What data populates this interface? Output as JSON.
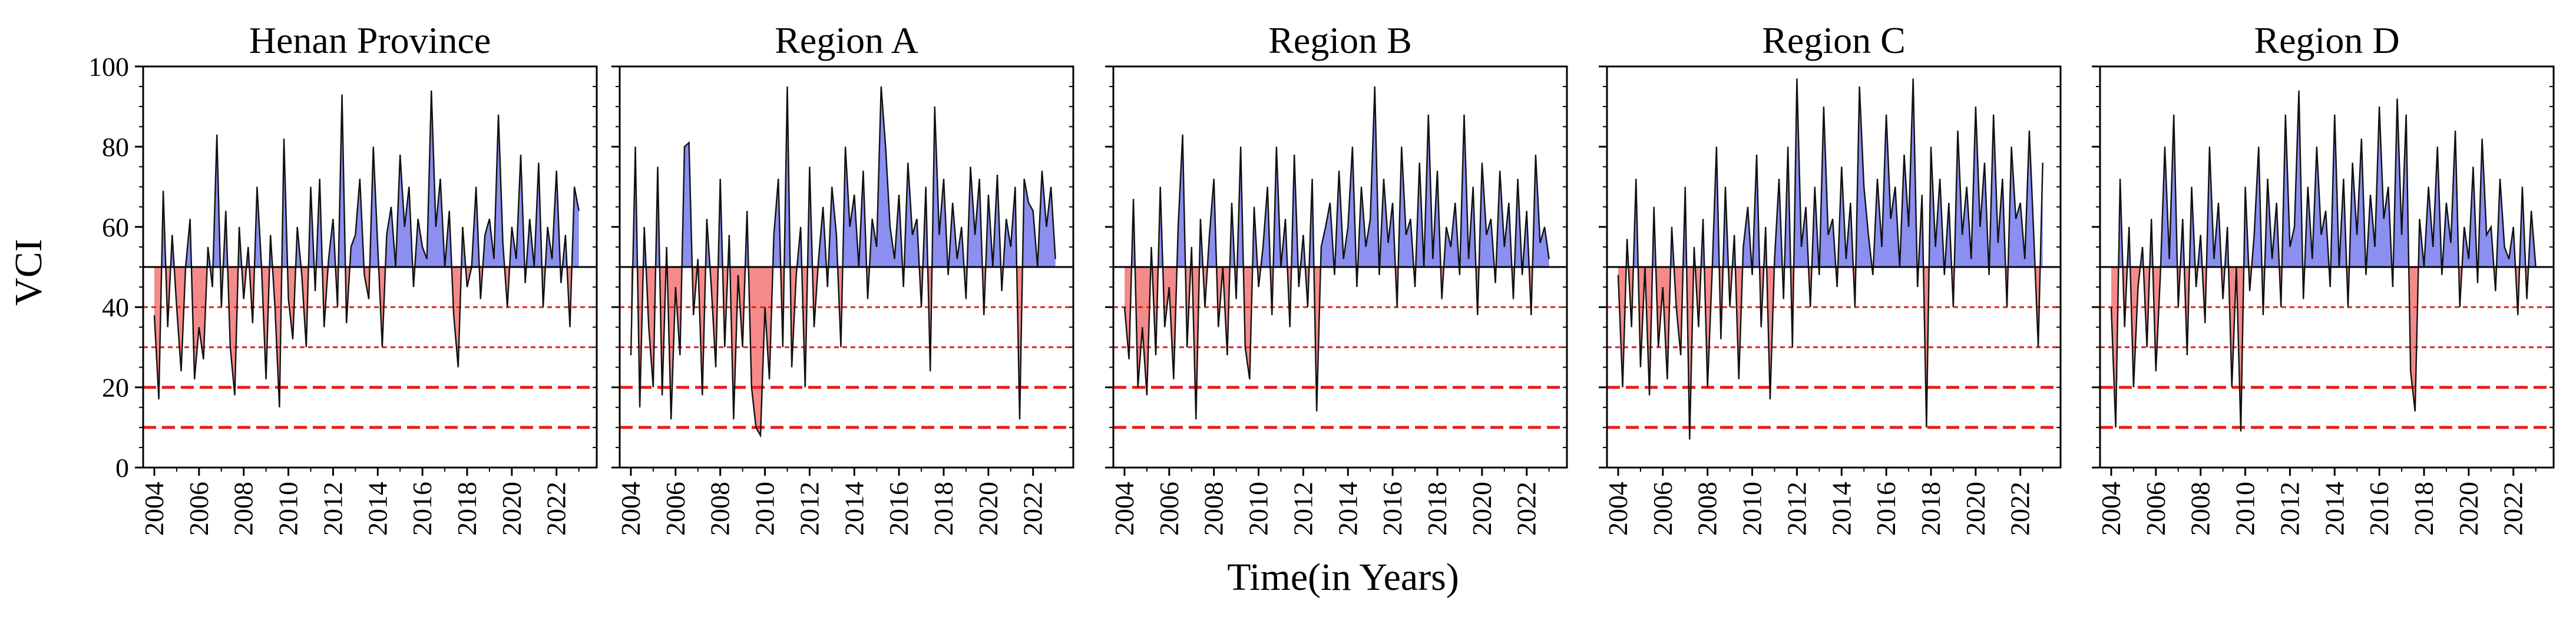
{
  "figure": {
    "ylabel": "VCI",
    "xlabel": "Time(in Years)"
  },
  "chart_data": [
    {
      "type": "area",
      "title": "Henan Province",
      "ylim": [
        0,
        100
      ],
      "yticks": [
        0,
        20,
        40,
        60,
        80,
        100
      ],
      "xlim": [
        2003.5,
        2023.8
      ],
      "xticks": [
        "2004",
        "2006",
        "2008",
        "2010",
        "2012",
        "2014",
        "2016",
        "2018",
        "2020",
        "2022"
      ],
      "baseline": 50,
      "reference_lines": [
        40,
        30,
        20,
        10
      ],
      "x": [
        2004.0,
        2004.2,
        2004.4,
        2004.6,
        2004.8,
        2005.0,
        2005.2,
        2005.4,
        2005.6,
        2005.8,
        2006.0,
        2006.2,
        2006.4,
        2006.6,
        2006.8,
        2007.0,
        2007.2,
        2007.4,
        2007.6,
        2007.8,
        2008.0,
        2008.2,
        2008.4,
        2008.6,
        2008.8,
        2009.0,
        2009.2,
        2009.4,
        2009.6,
        2009.8,
        2010.0,
        2010.2,
        2010.4,
        2010.6,
        2010.8,
        2011.0,
        2011.2,
        2011.4,
        2011.6,
        2011.8,
        2012.0,
        2012.2,
        2012.4,
        2012.6,
        2012.8,
        2013.0,
        2013.2,
        2013.4,
        2013.6,
        2013.8,
        2014.0,
        2014.2,
        2014.4,
        2014.6,
        2014.8,
        2015.0,
        2015.2,
        2015.4,
        2015.6,
        2015.8,
        2016.0,
        2016.2,
        2016.4,
        2016.6,
        2016.8,
        2017.0,
        2017.2,
        2017.4,
        2017.6,
        2017.8,
        2018.0,
        2018.2,
        2018.4,
        2018.6,
        2018.8,
        2019.0,
        2019.2,
        2019.4,
        2019.6,
        2019.8,
        2020.0,
        2020.2,
        2020.4,
        2020.6,
        2020.8,
        2021.0,
        2021.2,
        2021.4,
        2021.6,
        2021.8,
        2022.0,
        2022.2,
        2022.4,
        2022.6,
        2022.8,
        2023.0
      ],
      "values": [
        38,
        17,
        69,
        35,
        58,
        40,
        24,
        50,
        62,
        22,
        35,
        27,
        55,
        45,
        83,
        40,
        64,
        30,
        18,
        60,
        42,
        55,
        36,
        70,
        50,
        22,
        58,
        40,
        15,
        82,
        42,
        32,
        60,
        48,
        30,
        70,
        44,
        72,
        35,
        52,
        62,
        40,
        93,
        36,
        55,
        58,
        72,
        48,
        42,
        80,
        55,
        30,
        58,
        65,
        50,
        78,
        60,
        70,
        45,
        62,
        55,
        52,
        94,
        60,
        72,
        50,
        64,
        38,
        25,
        60,
        45,
        50,
        70,
        42,
        58,
        62,
        52,
        88,
        56,
        40,
        60,
        52,
        78,
        46,
        62,
        50,
        76,
        40,
        60,
        52,
        74,
        46,
        58,
        35,
        70,
        64
      ],
      "series_color": {
        "above": "#8a8ff0",
        "below": "#f58a8a"
      }
    },
    {
      "type": "area",
      "title": "Region A",
      "ylim": [
        0,
        100
      ],
      "yticks": [
        0,
        20,
        40,
        60,
        80,
        100
      ],
      "xlim": [
        2003.5,
        2023.8
      ],
      "xticks": [
        "2004",
        "2006",
        "2008",
        "2010",
        "2012",
        "2014",
        "2016",
        "2018",
        "2020",
        "2022"
      ],
      "baseline": 50,
      "reference_lines": [
        40,
        30,
        20,
        10
      ],
      "x": [
        2004.0,
        2004.2,
        2004.4,
        2004.6,
        2004.8,
        2005.0,
        2005.2,
        2005.4,
        2005.6,
        2005.8,
        2006.0,
        2006.2,
        2006.4,
        2006.6,
        2006.8,
        2007.0,
        2007.2,
        2007.4,
        2007.6,
        2007.8,
        2008.0,
        2008.2,
        2008.4,
        2008.6,
        2008.8,
        2009.0,
        2009.2,
        2009.4,
        2009.6,
        2009.8,
        2010.0,
        2010.2,
        2010.4,
        2010.6,
        2010.8,
        2011.0,
        2011.2,
        2011.4,
        2011.6,
        2011.8,
        2012.0,
        2012.2,
        2012.4,
        2012.6,
        2012.8,
        2013.0,
        2013.2,
        2013.4,
        2013.6,
        2013.8,
        2014.0,
        2014.2,
        2014.4,
        2014.6,
        2014.8,
        2015.0,
        2015.2,
        2015.4,
        2015.6,
        2015.8,
        2016.0,
        2016.2,
        2016.4,
        2016.6,
        2016.8,
        2017.0,
        2017.2,
        2017.4,
        2017.6,
        2017.8,
        2018.0,
        2018.2,
        2018.4,
        2018.6,
        2018.8,
        2019.0,
        2019.2,
        2019.4,
        2019.6,
        2019.8,
        2020.0,
        2020.2,
        2020.4,
        2020.6,
        2020.8,
        2021.0,
        2021.2,
        2021.4,
        2021.6,
        2021.8,
        2022.0,
        2022.2,
        2022.4,
        2022.6,
        2022.8,
        2023.0
      ],
      "values": [
        28,
        80,
        15,
        60,
        35,
        20,
        75,
        18,
        55,
        12,
        45,
        28,
        80,
        81,
        38,
        52,
        18,
        62,
        45,
        25,
        72,
        30,
        58,
        12,
        48,
        30,
        64,
        20,
        10,
        8,
        40,
        22,
        58,
        72,
        30,
        95,
        25,
        48,
        60,
        20,
        75,
        35,
        52,
        65,
        45,
        70,
        58,
        30,
        80,
        60,
        68,
        50,
        74,
        42,
        62,
        55,
        95,
        80,
        60,
        52,
        68,
        45,
        76,
        58,
        62,
        40,
        70,
        24,
        90,
        58,
        72,
        48,
        66,
        52,
        60,
        42,
        75,
        58,
        72,
        38,
        68,
        50,
        73,
        44,
        62,
        55,
        70,
        12,
        72,
        66,
        64,
        50,
        74,
        60,
        70,
        52
      ],
      "series_color": {
        "above": "#8a8ff0",
        "below": "#f58a8a"
      }
    },
    {
      "type": "area",
      "title": "Region B",
      "ylim": [
        0,
        100
      ],
      "yticks": [
        0,
        20,
        40,
        60,
        80,
        100
      ],
      "xlim": [
        2003.5,
        2023.8
      ],
      "xticks": [
        "2004",
        "2006",
        "2008",
        "2010",
        "2012",
        "2014",
        "2016",
        "2018",
        "2020",
        "2022"
      ],
      "baseline": 50,
      "reference_lines": [
        40,
        30,
        20,
        10
      ],
      "x": [
        2004.0,
        2004.2,
        2004.4,
        2004.6,
        2004.8,
        2005.0,
        2005.2,
        2005.4,
        2005.6,
        2005.8,
        2006.0,
        2006.2,
        2006.4,
        2006.6,
        2006.8,
        2007.0,
        2007.2,
        2007.4,
        2007.6,
        2007.8,
        2008.0,
        2008.2,
        2008.4,
        2008.6,
        2008.8,
        2009.0,
        2009.2,
        2009.4,
        2009.6,
        2009.8,
        2010.0,
        2010.2,
        2010.4,
        2010.6,
        2010.8,
        2011.0,
        2011.2,
        2011.4,
        2011.6,
        2011.8,
        2012.0,
        2012.2,
        2012.4,
        2012.6,
        2012.8,
        2013.0,
        2013.2,
        2013.4,
        2013.6,
        2013.8,
        2014.0,
        2014.2,
        2014.4,
        2014.6,
        2014.8,
        2015.0,
        2015.2,
        2015.4,
        2015.6,
        2015.8,
        2016.0,
        2016.2,
        2016.4,
        2016.6,
        2016.8,
        2017.0,
        2017.2,
        2017.4,
        2017.6,
        2017.8,
        2018.0,
        2018.2,
        2018.4,
        2018.6,
        2018.8,
        2019.0,
        2019.2,
        2019.4,
        2019.6,
        2019.8,
        2020.0,
        2020.2,
        2020.4,
        2020.6,
        2020.8,
        2021.0,
        2021.2,
        2021.4,
        2021.6,
        2021.8,
        2022.0,
        2022.2,
        2022.4,
        2022.6,
        2022.8,
        2023.0
      ],
      "values": [
        40,
        27,
        67,
        20,
        35,
        18,
        55,
        28,
        70,
        35,
        45,
        22,
        60,
        83,
        30,
        55,
        12,
        62,
        40,
        58,
        72,
        35,
        50,
        28,
        66,
        42,
        80,
        30,
        22,
        65,
        45,
        55,
        70,
        38,
        80,
        50,
        62,
        35,
        78,
        45,
        58,
        40,
        72,
        14,
        55,
        60,
        66,
        48,
        74,
        52,
        60,
        80,
        45,
        70,
        55,
        62,
        95,
        48,
        72,
        56,
        66,
        40,
        80,
        58,
        62,
        45,
        76,
        50,
        88,
        52,
        74,
        42,
        60,
        55,
        66,
        48,
        88,
        52,
        70,
        38,
        76,
        58,
        62,
        46,
        74,
        55,
        66,
        42,
        72,
        48,
        64,
        38,
        78,
        56,
        60,
        52
      ],
      "series_color": {
        "above": "#8a8ff0",
        "below": "#f58a8a"
      }
    },
    {
      "type": "area",
      "title": "Region C",
      "ylim": [
        0,
        100
      ],
      "yticks": [
        0,
        20,
        40,
        60,
        80,
        100
      ],
      "xlim": [
        2003.5,
        2023.8
      ],
      "xticks": [
        "2004",
        "2006",
        "2008",
        "2010",
        "2012",
        "2014",
        "2016",
        "2018",
        "2020",
        "2022"
      ],
      "baseline": 50,
      "reference_lines": [
        40,
        30,
        20,
        10
      ],
      "x": [
        2004.0,
        2004.2,
        2004.4,
        2004.6,
        2004.8,
        2005.0,
        2005.2,
        2005.4,
        2005.6,
        2005.8,
        2006.0,
        2006.2,
        2006.4,
        2006.6,
        2006.8,
        2007.0,
        2007.2,
        2007.4,
        2007.6,
        2007.8,
        2008.0,
        2008.2,
        2008.4,
        2008.6,
        2008.8,
        2009.0,
        2009.2,
        2009.4,
        2009.6,
        2009.8,
        2010.0,
        2010.2,
        2010.4,
        2010.6,
        2010.8,
        2011.0,
        2011.2,
        2011.4,
        2011.6,
        2011.8,
        2012.0,
        2012.2,
        2012.4,
        2012.6,
        2012.8,
        2013.0,
        2013.2,
        2013.4,
        2013.6,
        2013.8,
        2014.0,
        2014.2,
        2014.4,
        2014.6,
        2014.8,
        2015.0,
        2015.2,
        2015.4,
        2015.6,
        2015.8,
        2016.0,
        2016.2,
        2016.4,
        2016.6,
        2016.8,
        2017.0,
        2017.2,
        2017.4,
        2017.6,
        2017.8,
        2018.0,
        2018.2,
        2018.4,
        2018.6,
        2018.8,
        2019.0,
        2019.2,
        2019.4,
        2019.6,
        2019.8,
        2020.0,
        2020.2,
        2020.4,
        2020.6,
        2020.8,
        2021.0,
        2021.2,
        2021.4,
        2021.6,
        2021.8,
        2022.0,
        2022.2,
        2022.4,
        2022.6,
        2022.8,
        2023.0
      ],
      "values": [
        48,
        20,
        57,
        35,
        72,
        25,
        50,
        18,
        65,
        30,
        45,
        22,
        60,
        40,
        28,
        70,
        7,
        55,
        35,
        62,
        20,
        48,
        80,
        32,
        70,
        40,
        58,
        22,
        55,
        65,
        48,
        78,
        35,
        60,
        17,
        52,
        72,
        42,
        80,
        30,
        97,
        55,
        65,
        40,
        70,
        48,
        90,
        58,
        62,
        45,
        75,
        52,
        66,
        40,
        95,
        70,
        58,
        48,
        72,
        55,
        88,
        62,
        70,
        50,
        78,
        60,
        97,
        45,
        68,
        10,
        80,
        55,
        72,
        48,
        66,
        40,
        84,
        58,
        70,
        52,
        90,
        60,
        76,
        48,
        88,
        56,
        72,
        40,
        80,
        62,
        66,
        52,
        84,
        58,
        30,
        76
      ],
      "series_color": {
        "above": "#8a8ff0",
        "below": "#f58a8a"
      }
    },
    {
      "type": "area",
      "title": "Region D",
      "ylim": [
        0,
        100
      ],
      "yticks": [
        0,
        20,
        40,
        60,
        80,
        100
      ],
      "xlim": [
        2003.5,
        2023.8
      ],
      "xticks": [
        "2004",
        "2006",
        "2008",
        "2010",
        "2012",
        "2014",
        "2016",
        "2018",
        "2020",
        "2022"
      ],
      "baseline": 50,
      "reference_lines": [
        40,
        30,
        20,
        10
      ],
      "x": [
        2004.0,
        2004.2,
        2004.4,
        2004.6,
        2004.8,
        2005.0,
        2005.2,
        2005.4,
        2005.6,
        2005.8,
        2006.0,
        2006.2,
        2006.4,
        2006.6,
        2006.8,
        2007.0,
        2007.2,
        2007.4,
        2007.6,
        2007.8,
        2008.0,
        2008.2,
        2008.4,
        2008.6,
        2008.8,
        2009.0,
        2009.2,
        2009.4,
        2009.6,
        2009.8,
        2010.0,
        2010.2,
        2010.4,
        2010.6,
        2010.8,
        2011.0,
        2011.2,
        2011.4,
        2011.6,
        2011.8,
        2012.0,
        2012.2,
        2012.4,
        2012.6,
        2012.8,
        2013.0,
        2013.2,
        2013.4,
        2013.6,
        2013.8,
        2014.0,
        2014.2,
        2014.4,
        2014.6,
        2014.8,
        2015.0,
        2015.2,
        2015.4,
        2015.6,
        2015.8,
        2016.0,
        2016.2,
        2016.4,
        2016.6,
        2016.8,
        2017.0,
        2017.2,
        2017.4,
        2017.6,
        2017.8,
        2018.0,
        2018.2,
        2018.4,
        2018.6,
        2018.8,
        2019.0,
        2019.2,
        2019.4,
        2019.6,
        2019.8,
        2020.0,
        2020.2,
        2020.4,
        2020.6,
        2020.8,
        2021.0,
        2021.2,
        2021.4,
        2021.6,
        2021.8,
        2022.0,
        2022.2,
        2022.4,
        2022.6,
        2022.8,
        2023.0
      ],
      "values": [
        40,
        10,
        72,
        35,
        60,
        20,
        45,
        55,
        30,
        62,
        24,
        48,
        80,
        52,
        88,
        40,
        62,
        28,
        70,
        45,
        58,
        36,
        80,
        52,
        66,
        42,
        60,
        20,
        50,
        9,
        70,
        44,
        58,
        80,
        38,
        72,
        52,
        66,
        40,
        88,
        55,
        60,
        94,
        42,
        70,
        52,
        80,
        58,
        64,
        45,
        88,
        50,
        72,
        40,
        76,
        58,
        82,
        48,
        68,
        55,
        90,
        62,
        70,
        45,
        92,
        58,
        88,
        24,
        14,
        62,
        50,
        70,
        55,
        80,
        48,
        66,
        56,
        84,
        40,
        60,
        52,
        75,
        46,
        82,
        58,
        60,
        44,
        72,
        55,
        52,
        60,
        38,
        70,
        42,
        64,
        50
      ],
      "series_color": {
        "above": "#8a8ff0",
        "below": "#f58a8a"
      }
    }
  ]
}
